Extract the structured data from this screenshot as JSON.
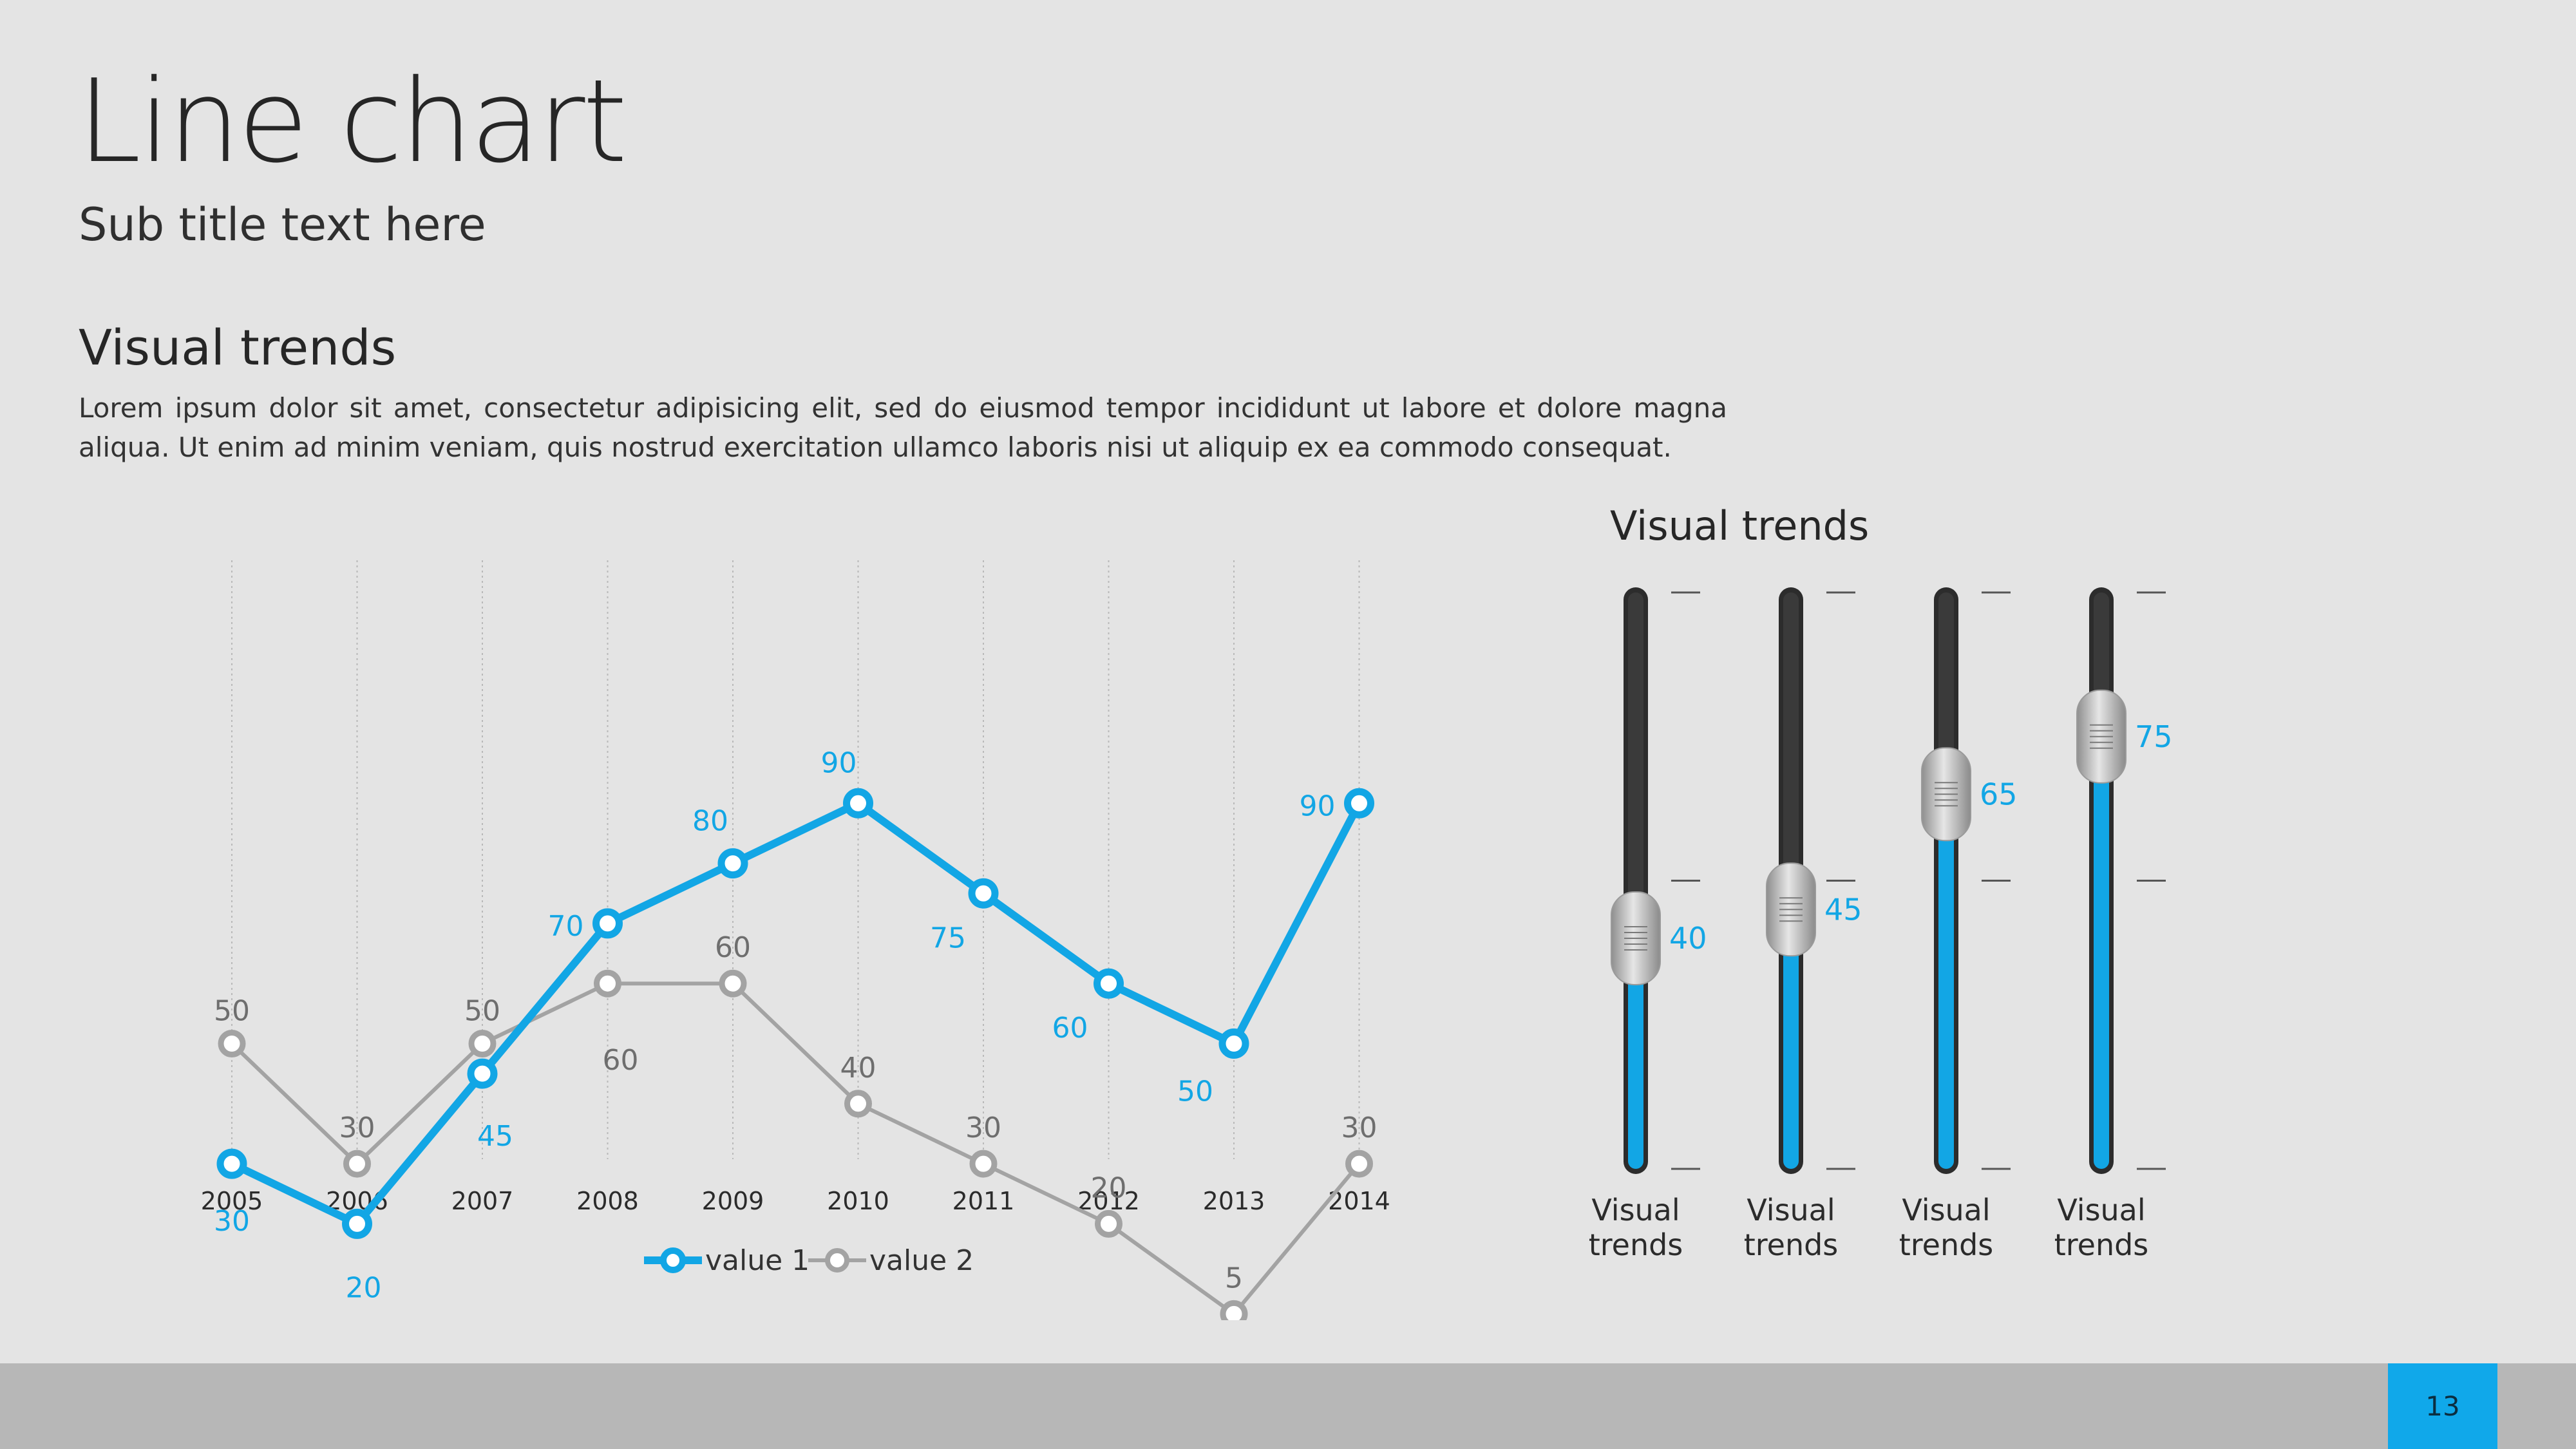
{
  "header": {
    "title": "Line chart",
    "subtitle": "Sub title text here"
  },
  "section": {
    "heading": "Visual trends",
    "body": "Lorem ipsum dolor sit amet, consectetur adipisicing elit, sed do eiusmod tempor incididunt ut labore et dolore magna aliqua. Ut enim ad minim veniam, quis nostrud exercitation ullamco laboris nisi ut aliquip ex ea commodo consequat."
  },
  "chart_data": [
    {
      "type": "line",
      "title": "",
      "xlabel": "",
      "ylabel": "",
      "ylim": [
        0,
        100
      ],
      "grid": "vertical dotted",
      "legend": "bottom-center",
      "x": [
        "2005",
        "2006",
        "2007",
        "2008",
        "2009",
        "2010",
        "2011",
        "2012",
        "2013",
        "2014"
      ],
      "series": [
        {
          "name": "value 1",
          "color": "#12a6e5",
          "values": [
            30,
            20,
            45,
            70,
            80,
            90,
            75,
            60,
            50,
            90
          ]
        },
        {
          "name": "value 2",
          "color": "#a3a3a3",
          "values": [
            50,
            30,
            50,
            60,
            60,
            40,
            30,
            20,
            5,
            30
          ]
        }
      ]
    },
    {
      "type": "bar",
      "title": "Visual trends",
      "ylim": [
        0,
        100
      ],
      "categories": [
        "Visual trends",
        "Visual trends",
        "Visual trends",
        "Visual trends"
      ],
      "values": [
        40,
        45,
        65,
        75
      ],
      "fill_color": "#12a6e5",
      "track_color": "#3a3a3a"
    }
  ],
  "right_panel": {
    "heading": "Visual trends"
  },
  "footer": {
    "page_number": "13"
  }
}
